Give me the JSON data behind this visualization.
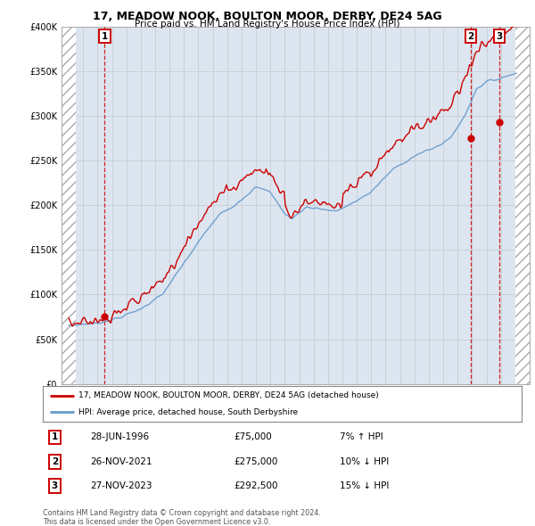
{
  "title_line1": "17, MEADOW NOOK, BOULTON MOOR, DERBY, DE24 5AG",
  "title_line2": "Price paid vs. HM Land Registry's House Price Index (HPI)",
  "legend_label1": "17, MEADOW NOOK, BOULTON MOOR, DERBY, DE24 5AG (detached house)",
  "legend_label2": "HPI: Average price, detached house, South Derbyshire",
  "sale_date1": "28-JUN-1996",
  "sale_date2": "26-NOV-2021",
  "sale_date3": "27-NOV-2023",
  "sale_price1": "£75,000",
  "sale_price2": "£275,000",
  "sale_price3": "£292,500",
  "sale_hpi1": "7% ↑ HPI",
  "sale_hpi2": "10% ↓ HPI",
  "sale_hpi3": "15% ↓ HPI",
  "footer": "Contains HM Land Registry data © Crown copyright and database right 2024.\nThis data is licensed under the Open Government Licence v3.0.",
  "red_color": "#cc0000",
  "blue_color": "#6699cc",
  "grid_color": "#c8d0d8",
  "background_color": "#ffffff",
  "plot_bg_color": "#dde6f0",
  "ylim": [
    0,
    400000
  ],
  "xlim_start": 1993.5,
  "xlim_end": 2026.0,
  "hatch_left_end": 1994.5,
  "hatch_right_start": 2025.0,
  "sale1_x": 1996.49,
  "sale1_y": 75000,
  "sale2_x": 2021.9,
  "sale2_y": 275000,
  "sale3_x": 2023.9,
  "sale3_y": 292500
}
